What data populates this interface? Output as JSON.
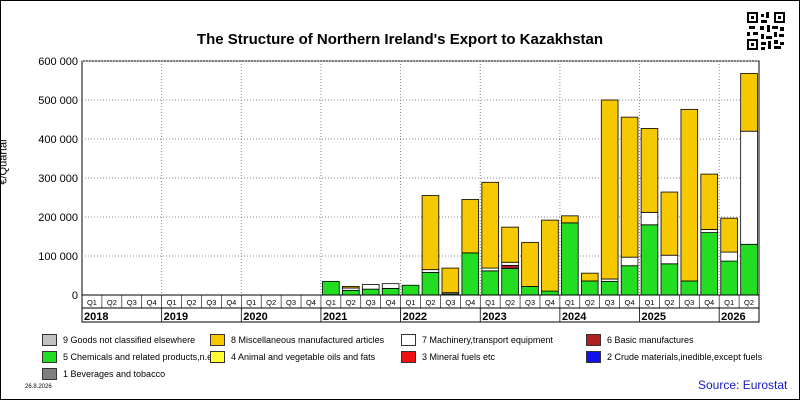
{
  "title": "The Structure of Northern Ireland's Export to Kazakhstan",
  "ylabel_text": "€/Quartal",
  "source_text": "Source: Eurostat",
  "date_text": "26.8.2026",
  "qr_icon": "qr-code-icon",
  "colors": {
    "chemicals": "#22dd22",
    "machinery": "#ffffff",
    "misc": "#f5c800",
    "manufactures": "#b02020",
    "bar_outline": "#000000",
    "grid": "#888888",
    "plot_bg": "#ffffff"
  },
  "legend": [
    {
      "label": "9 Goods not classified elsewhere",
      "color": "#c0c0c0"
    },
    {
      "label": "8 Miscellaneous manufactured articles",
      "color": "#f5c800"
    },
    {
      "label": "7 Machinery,transport equipment",
      "color": "#ffffff"
    },
    {
      "label": "6 Basic manufactures",
      "color": "#b02020"
    },
    {
      "label": "5 Chemicals and related products,n.e.s.",
      "color": "#22dd22"
    },
    {
      "label": "4 Animal and vegetable oils and fats",
      "color": "#ffff33"
    },
    {
      "label": "3 Mineral fuels etc",
      "color": "#ee1111"
    },
    {
      "label": "2 Crude materials,inedible,except fuels",
      "color": "#1111ee"
    },
    {
      "label": "1 Beverages and tobacco",
      "color": "#808080"
    }
  ],
  "chart_data": {
    "type": "bar",
    "stacked": true,
    "title": "The Structure of Northern Ireland's Export to Kazakhstan",
    "ylabel": "€/Quartal",
    "ylim": [
      0,
      600000
    ],
    "y_ticks": [
      "0",
      "100 000",
      "200 000",
      "300 000",
      "400 000",
      "500 000",
      "600 000"
    ],
    "y_tick_values": [
      0,
      100000,
      200000,
      300000,
      400000,
      500000,
      600000
    ],
    "grid": true,
    "years": [
      "2018",
      "2019",
      "2020",
      "2021",
      "2022",
      "2023",
      "2024",
      "2025",
      "2026"
    ],
    "quarter_labels": [
      "Q1",
      "Q2",
      "Q3",
      "Q4",
      "Q1",
      "Q2",
      "Q3",
      "Q4",
      "Q1",
      "Q2",
      "Q3",
      "Q4",
      "Q1",
      "Q2",
      "Q3",
      "Q4",
      "Q1",
      "Q2",
      "Q3",
      "Q4",
      "Q1",
      "Q2",
      "Q3",
      "Q4",
      "Q1",
      "Q2",
      "Q3",
      "Q4",
      "Q1",
      "Q2",
      "Q3",
      "Q4",
      "Q1",
      "Q2"
    ],
    "series": [
      {
        "name": "5 Chemicals and related products,n.e.s.",
        "color": "#22dd22",
        "values": [
          0,
          0,
          0,
          0,
          0,
          0,
          0,
          0,
          0,
          0,
          0,
          0,
          35000,
          12000,
          15000,
          17000,
          25000,
          58000,
          3000,
          108000,
          62000,
          68000,
          22000,
          10000,
          185000,
          36000,
          35000,
          75000,
          180000,
          80000,
          36000,
          160000,
          87000,
          130000
        ]
      },
      {
        "name": "6 Basic manufactures",
        "color": "#b02020",
        "values": [
          0,
          0,
          0,
          0,
          0,
          0,
          0,
          0,
          0,
          0,
          0,
          0,
          0,
          0,
          0,
          0,
          0,
          0,
          0,
          0,
          0,
          8000,
          0,
          0,
          0,
          0,
          0,
          0,
          0,
          0,
          0,
          0,
          0,
          0
        ]
      },
      {
        "name": "7 Machinery,transport equipment",
        "color": "#ffffff",
        "values": [
          0,
          0,
          0,
          0,
          0,
          0,
          0,
          0,
          0,
          0,
          0,
          0,
          0,
          6000,
          12000,
          12000,
          0,
          7000,
          3000,
          0,
          7000,
          8000,
          0,
          0,
          0,
          0,
          6000,
          22000,
          32000,
          22000,
          0,
          8000,
          23000,
          290000
        ]
      },
      {
        "name": "8 Miscellaneous manufactured articles",
        "color": "#f5c800",
        "values": [
          0,
          0,
          0,
          0,
          0,
          0,
          0,
          0,
          0,
          0,
          0,
          0,
          0,
          4000,
          0,
          0,
          0,
          190000,
          63000,
          137000,
          220000,
          90000,
          113000,
          182000,
          18000,
          20000,
          459000,
          359000,
          215000,
          162000,
          440000,
          142000,
          87000,
          148000
        ]
      }
    ]
  }
}
